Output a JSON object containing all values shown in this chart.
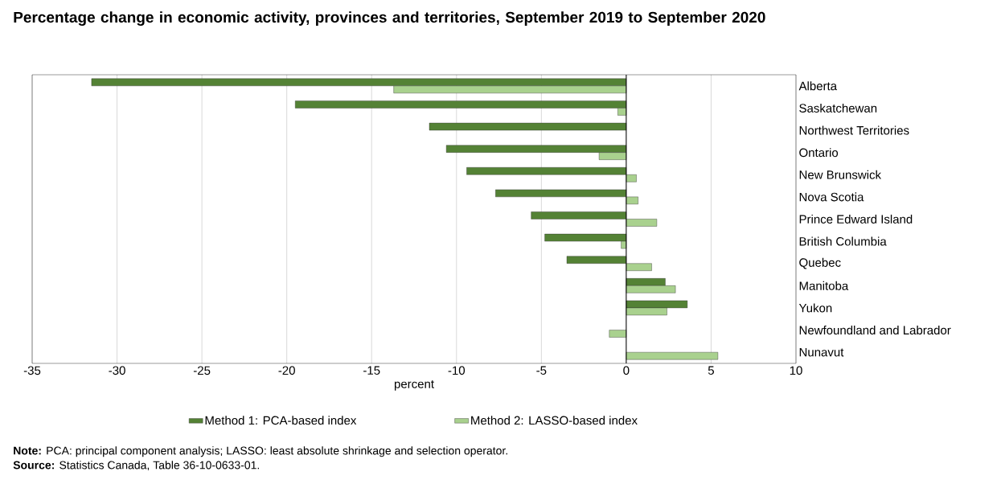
{
  "chart_data": {
    "type": "bar",
    "orientation": "horizontal",
    "title": "Percentage change in economic activity, provinces and territories, September 2019 to September 2020",
    "xlabel": "percent",
    "categories": [
      "Alberta",
      "Saskatchewan",
      "Northwest Territories",
      "Ontario",
      "New Brunswick",
      "Nova Scotia",
      "Prince Edward Island",
      "British Columbia",
      "Quebec",
      "Manitoba",
      "Yukon",
      "Newfoundland and Labrador",
      "Nunavut"
    ],
    "series": [
      {
        "name": "Method 1: PCA-based index",
        "color": "#548235",
        "values": [
          -31.5,
          -19.5,
          -11.6,
          -10.6,
          -9.4,
          -7.7,
          -5.6,
          -4.8,
          -3.5,
          2.3,
          3.6,
          null,
          null
        ]
      },
      {
        "name": "Method 2: LASSO-based index",
        "color": "#a9d18e",
        "values": [
          -13.7,
          -0.5,
          null,
          -1.6,
          0.6,
          0.7,
          1.8,
          -0.3,
          1.5,
          2.9,
          2.4,
          -1.0,
          5.4
        ]
      }
    ],
    "xlim": [
      -35,
      10
    ],
    "xticks": [
      -35,
      -30,
      -25,
      -20,
      -15,
      -10,
      -5,
      0,
      5,
      10
    ],
    "grid": "x",
    "legend": "bottom",
    "annotations": [
      "**Note:** PCA: principal component analysis; LASSO: least absolute shrinkage and selection operator.",
      "**Source:** Statistics Canada, Table 36-10-0633-01."
    ]
  }
}
